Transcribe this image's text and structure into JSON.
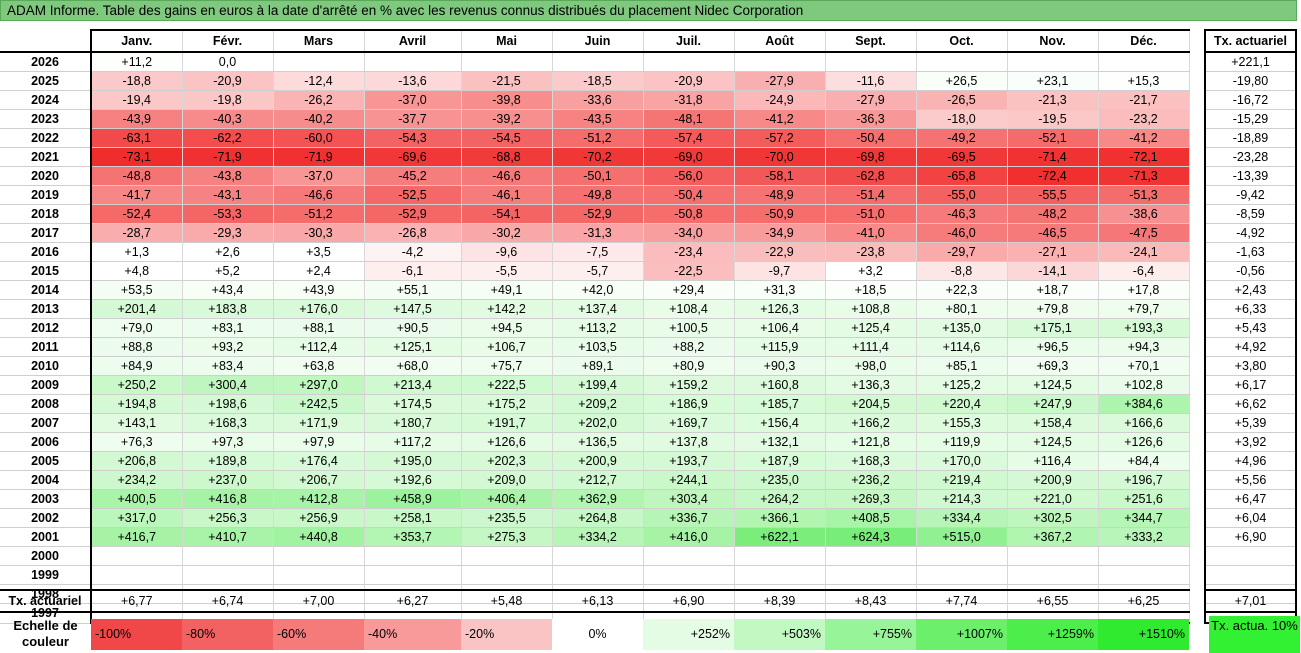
{
  "title": "ADAM Informe. Table des gains en euros à la date d'arrêté en % avec les revenus connus distribués du placement Nidec Corporation",
  "months": [
    "Janv.",
    "Févr.",
    "Mars",
    "Avril",
    "Mai",
    "Juin",
    "Juil.",
    "Août",
    "Sept.",
    "Oct.",
    "Nov.",
    "Déc."
  ],
  "ta_header": "Tx. actuariel",
  "rows": [
    {
      "year": "2026",
      "values": [
        "+11,2",
        "0,0",
        "",
        "",
        "",
        "",
        "",
        "",
        "",
        "",
        "",
        ""
      ],
      "ta": "+221,1"
    },
    {
      "year": "2025",
      "values": [
        "-18,8",
        "-20,9",
        "-12,4",
        "-13,6",
        "-21,5",
        "-18,5",
        "-20,9",
        "-27,9",
        "-11,6",
        "+26,5",
        "+23,1",
        "+15,3"
      ],
      "ta": "-19,80"
    },
    {
      "year": "2024",
      "values": [
        "-19,4",
        "-19,8",
        "-26,2",
        "-37,0",
        "-39,8",
        "-33,6",
        "-31,8",
        "-24,9",
        "-27,9",
        "-26,5",
        "-21,3",
        "-21,7"
      ],
      "ta": "-16,72"
    },
    {
      "year": "2023",
      "values": [
        "-43,9",
        "-40,3",
        "-40,2",
        "-37,7",
        "-39,2",
        "-43,5",
        "-48,1",
        "-41,2",
        "-36,3",
        "-18,0",
        "-19,5",
        "-23,2"
      ],
      "ta": "-15,29"
    },
    {
      "year": "2022",
      "values": [
        "-63,1",
        "-62,2",
        "-60,0",
        "-54,3",
        "-54,5",
        "-51,2",
        "-57,4",
        "-57,2",
        "-50,4",
        "-49,2",
        "-52,1",
        "-41,2"
      ],
      "ta": "-18,89"
    },
    {
      "year": "2021",
      "values": [
        "-73,1",
        "-71,9",
        "-71,9",
        "-69,6",
        "-68,8",
        "-70,2",
        "-69,0",
        "-70,0",
        "-69,8",
        "-69,5",
        "-71,4",
        "-72,1"
      ],
      "ta": "-23,28"
    },
    {
      "year": "2020",
      "values": [
        "-48,8",
        "-43,8",
        "-37,0",
        "-45,2",
        "-46,6",
        "-50,1",
        "-56,0",
        "-58,1",
        "-62,8",
        "-65,8",
        "-72,4",
        "-71,3"
      ],
      "ta": "-13,39"
    },
    {
      "year": "2019",
      "values": [
        "-41,7",
        "-43,1",
        "-46,6",
        "-52,5",
        "-46,1",
        "-49,8",
        "-50,4",
        "-48,9",
        "-51,4",
        "-55,0",
        "-55,5",
        "-51,3"
      ],
      "ta": "-9,42"
    },
    {
      "year": "2018",
      "values": [
        "-52,4",
        "-53,3",
        "-51,2",
        "-52,9",
        "-54,1",
        "-52,9",
        "-50,8",
        "-50,9",
        "-51,0",
        "-46,3",
        "-48,2",
        "-38,6"
      ],
      "ta": "-8,59"
    },
    {
      "year": "2017",
      "values": [
        "-28,7",
        "-29,3",
        "-30,3",
        "-26,8",
        "-30,2",
        "-31,3",
        "-34,0",
        "-34,9",
        "-41,0",
        "-46,0",
        "-46,5",
        "-47,5"
      ],
      "ta": "-4,92"
    },
    {
      "year": "2016",
      "values": [
        "+1,3",
        "+2,6",
        "+3,5",
        "-4,2",
        "-9,6",
        "-7,5",
        "-23,4",
        "-22,9",
        "-23,8",
        "-29,7",
        "-27,1",
        "-24,1"
      ],
      "ta": "-1,63"
    },
    {
      "year": "2015",
      "values": [
        "+4,8",
        "+5,2",
        "+2,4",
        "-6,1",
        "-5,5",
        "-5,7",
        "-22,5",
        "-9,7",
        "+3,2",
        "-8,8",
        "-14,1",
        "-6,4"
      ],
      "ta": "-0,56"
    },
    {
      "year": "2014",
      "values": [
        "+53,5",
        "+43,4",
        "+43,9",
        "+55,1",
        "+49,1",
        "+42,0",
        "+29,4",
        "+31,3",
        "+18,5",
        "+22,3",
        "+18,7",
        "+17,8"
      ],
      "ta": "+2,43"
    },
    {
      "year": "2013",
      "values": [
        "+201,4",
        "+183,8",
        "+176,0",
        "+147,5",
        "+142,2",
        "+137,4",
        "+108,4",
        "+126,3",
        "+108,8",
        "+80,1",
        "+79,8",
        "+79,7"
      ],
      "ta": "+6,33"
    },
    {
      "year": "2012",
      "values": [
        "+79,0",
        "+83,1",
        "+88,1",
        "+90,5",
        "+94,5",
        "+113,2",
        "+100,5",
        "+106,4",
        "+125,4",
        "+135,0",
        "+175,1",
        "+193,3"
      ],
      "ta": "+5,43"
    },
    {
      "year": "2011",
      "values": [
        "+88,8",
        "+93,2",
        "+112,4",
        "+125,1",
        "+106,7",
        "+103,5",
        "+88,2",
        "+115,9",
        "+111,4",
        "+114,6",
        "+96,5",
        "+94,3"
      ],
      "ta": "+4,92"
    },
    {
      "year": "2010",
      "values": [
        "+84,9",
        "+83,4",
        "+63,8",
        "+68,0",
        "+75,7",
        "+89,1",
        "+80,9",
        "+90,3",
        "+98,0",
        "+85,1",
        "+69,3",
        "+70,1"
      ],
      "ta": "+3,80"
    },
    {
      "year": "2009",
      "values": [
        "+250,2",
        "+300,4",
        "+297,0",
        "+213,4",
        "+222,5",
        "+199,4",
        "+159,2",
        "+160,8",
        "+136,3",
        "+125,2",
        "+124,5",
        "+102,8"
      ],
      "ta": "+6,17"
    },
    {
      "year": "2008",
      "values": [
        "+194,8",
        "+198,6",
        "+242,5",
        "+174,5",
        "+175,2",
        "+209,2",
        "+186,9",
        "+185,7",
        "+204,5",
        "+220,4",
        "+247,9",
        "+384,6"
      ],
      "ta": "+6,62"
    },
    {
      "year": "2007",
      "values": [
        "+143,1",
        "+168,3",
        "+171,9",
        "+180,7",
        "+191,7",
        "+202,0",
        "+169,7",
        "+156,4",
        "+166,2",
        "+155,3",
        "+158,4",
        "+166,6"
      ],
      "ta": "+5,39"
    },
    {
      "year": "2006",
      "values": [
        "+76,3",
        "+97,3",
        "+97,9",
        "+117,2",
        "+126,6",
        "+136,5",
        "+137,8",
        "+132,1",
        "+121,8",
        "+119,9",
        "+124,5",
        "+126,6"
      ],
      "ta": "+3,92"
    },
    {
      "year": "2005",
      "values": [
        "+206,8",
        "+189,8",
        "+176,4",
        "+195,0",
        "+202,3",
        "+200,9",
        "+193,7",
        "+187,9",
        "+168,3",
        "+170,0",
        "+116,4",
        "+84,4"
      ],
      "ta": "+4,96"
    },
    {
      "year": "2004",
      "values": [
        "+234,2",
        "+237,0",
        "+206,7",
        "+192,6",
        "+209,0",
        "+212,7",
        "+244,1",
        "+235,0",
        "+236,2",
        "+219,4",
        "+200,9",
        "+196,7"
      ],
      "ta": "+5,56"
    },
    {
      "year": "2003",
      "values": [
        "+400,5",
        "+416,8",
        "+412,8",
        "+458,9",
        "+406,4",
        "+362,9",
        "+303,4",
        "+264,2",
        "+269,3",
        "+214,3",
        "+221,0",
        "+251,6"
      ],
      "ta": "+6,47"
    },
    {
      "year": "2002",
      "values": [
        "+317,0",
        "+256,3",
        "+256,9",
        "+258,1",
        "+235,5",
        "+264,8",
        "+336,7",
        "+366,1",
        "+408,5",
        "+334,4",
        "+302,5",
        "+344,7"
      ],
      "ta": "+6,04"
    },
    {
      "year": "2001",
      "values": [
        "+416,7",
        "+410,7",
        "+440,8",
        "+353,7",
        "+275,3",
        "+334,2",
        "+416,0",
        "+622,1",
        "+624,3",
        "+515,0",
        "+367,2",
        "+333,2"
      ],
      "ta": "+6,90"
    },
    {
      "year": "2000",
      "values": [
        "",
        "",
        "",
        "",
        "",
        "",
        "",
        "",
        "",
        "",
        "",
        ""
      ],
      "ta": ""
    },
    {
      "year": "1999",
      "values": [
        "",
        "",
        "",
        "",
        "",
        "",
        "",
        "",
        "",
        "",
        "",
        ""
      ],
      "ta": ""
    },
    {
      "year": "1998",
      "values": [
        "",
        "",
        "",
        "",
        "",
        "",
        "",
        "",
        "",
        "",
        "",
        ""
      ],
      "ta": ""
    },
    {
      "year": "1997",
      "values": [
        "",
        "",
        "",
        "",
        "",
        "",
        "",
        "",
        "",
        "",
        "",
        ""
      ],
      "ta": ""
    }
  ],
  "summary": {
    "label": "Tx. actuariel",
    "values": [
      "+6,77",
      "+6,74",
      "+7,00",
      "+6,27",
      "+5,48",
      "+6,13",
      "+6,90",
      "+8,39",
      "+8,43",
      "+7,74",
      "+6,55",
      "+6,25"
    ],
    "ta": "+7,01"
  },
  "legend": {
    "label": "Echelle de couleur",
    "items": [
      {
        "text": "-100%",
        "color": "#f04848"
      },
      {
        "text": "-80%",
        "color": "#f26262"
      },
      {
        "text": "-60%",
        "color": "#f57a7a"
      },
      {
        "text": "-40%",
        "color": "#f89a9a"
      },
      {
        "text": "-20%",
        "color": "#fbc4c4"
      },
      {
        "text": "0%",
        "color": "#ffffff"
      },
      {
        "text": "+252%",
        "color": "#e4fce4"
      },
      {
        "text": "+503%",
        "color": "#c2f8c2"
      },
      {
        "text": "+755%",
        "color": "#98f498"
      },
      {
        "text": "+1007%",
        "color": "#6cf06c"
      },
      {
        "text": "+1259%",
        "color": "#4cee4c"
      },
      {
        "text": "+1510%",
        "color": "#30ea30"
      }
    ],
    "ta_label": "Tx. actua. 10%",
    "ta_color": "#32f032"
  }
}
